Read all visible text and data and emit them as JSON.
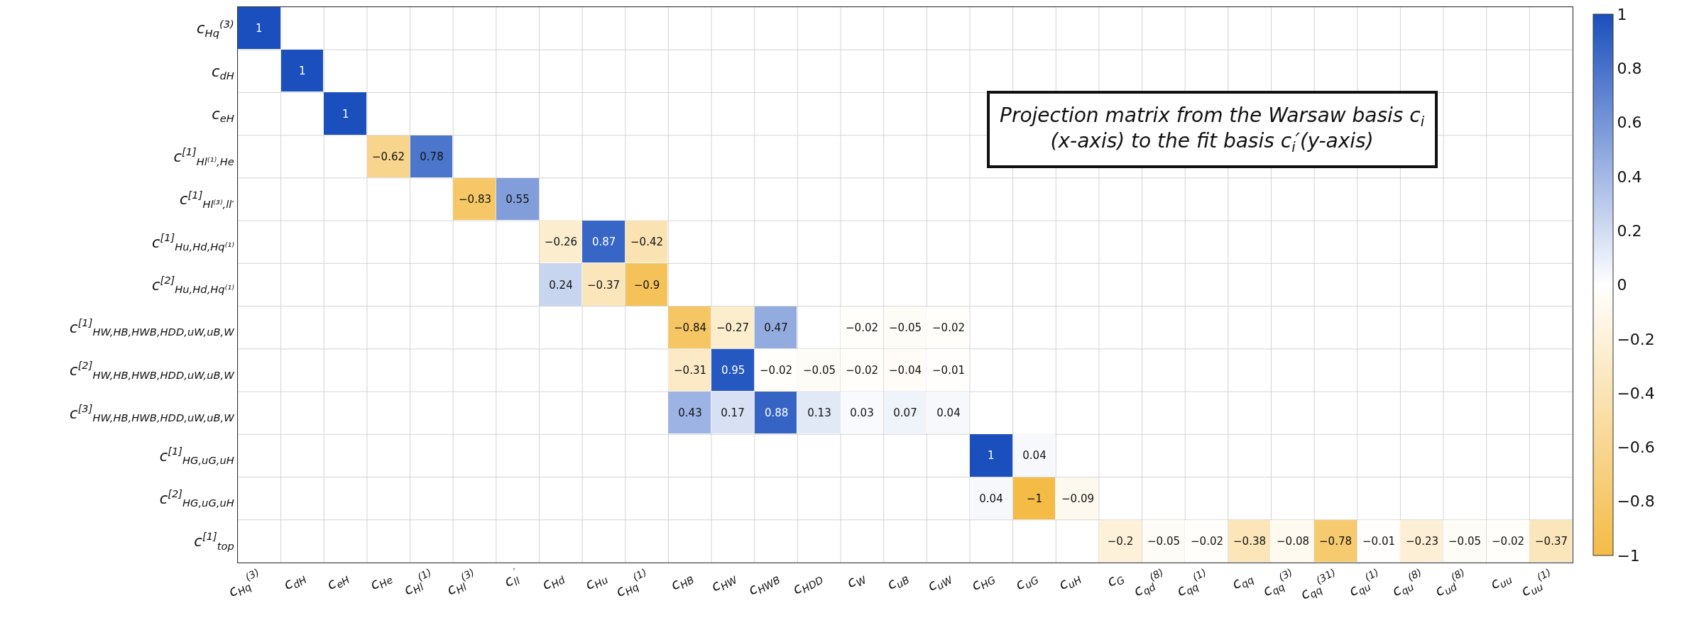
{
  "chart_data": {
    "type": "heatmap",
    "annotations": [
      "Projection matrix from the Warsaw basis c$_{i}$\n(x-axis) to the fit basis c$_{i}$′(y-axis)"
    ],
    "categories": [
      "c$_{Hq}$$^{(3)}$",
      "c$_{dH}$",
      "c$_{eH}$",
      "c$_{He}$",
      "c$_{Hl}$$^{(1)}$",
      "c$_{Hl}$$^{(3)}$",
      "c$_{ll}$$^{′}$",
      "c$_{Hd}$",
      "c$_{Hu}$",
      "c$_{Hq}$$^{(1)}$",
      "c$_{HB}$",
      "c$_{HW}$",
      "c$_{HWB}$",
      "c$_{HDD}$",
      "c$_{W}$",
      "c$_{uB}$",
      "c$_{uW}$",
      "c$_{HG}$",
      "c$_{uG}$",
      "c$_{uH}$",
      "c$_{G}$",
      "c$_{qd}$$^{(8)}$",
      "c$_{qq}$$^{(1)}$",
      "c$_{qq}$",
      "c$_{qq}$$^{(3)}$",
      "c$_{qq}$$^{(31)}$",
      "c$_{qu}$$^{(1)}$",
      "c$_{qu}$$^{(8)}$",
      "c$_{ud}$$^{(8)}$",
      "c$_{uu}$",
      "c$_{uu}$$^{(1)}$"
    ],
    "y_categories": [
      "c$_{Hq}$$^{(3)}$",
      "c$_{dH}$",
      "c$_{eH}$",
      "c$^{[1]}$$_{Hl⁽¹⁾,He}$",
      "c$^{[1]}$$_{Hl⁽³⁾,ll′}$",
      "c$^{[1]}$$_{Hu,Hd,Hq⁽¹⁾}$",
      "c$^{[2]}$$_{Hu,Hd,Hq⁽¹⁾}$",
      "c$^{[1]}$$_{HW,HB,HWB,HDD,uW,uB,W}$",
      "c$^{[2]}$$_{HW,HB,HWB,HDD,uW,uB,W}$",
      "c$^{[3]}$$_{HW,HB,HWB,HDD,uW,uB,W}$",
      "c$^{[1]}$$_{HG,uG,uH}$",
      "c$^{[2]}$$_{HG,uG,uH}$",
      "c$^{[1]}$$_{top}$"
    ],
    "cells": [
      [
        1,
        null,
        null,
        null,
        null,
        null,
        null,
        null,
        null,
        null,
        null,
        null,
        null,
        null,
        null,
        null,
        null,
        null,
        null,
        null,
        null,
        null,
        null,
        null,
        null,
        null,
        null,
        null,
        null,
        null,
        null
      ],
      [
        null,
        1,
        null,
        null,
        null,
        null,
        null,
        null,
        null,
        null,
        null,
        null,
        null,
        null,
        null,
        null,
        null,
        null,
        null,
        null,
        null,
        null,
        null,
        null,
        null,
        null,
        null,
        null,
        null,
        null,
        null
      ],
      [
        null,
        null,
        1,
        null,
        null,
        null,
        null,
        null,
        null,
        null,
        null,
        null,
        null,
        null,
        null,
        null,
        null,
        null,
        null,
        null,
        null,
        null,
        null,
        null,
        null,
        null,
        null,
        null,
        null,
        null,
        null
      ],
      [
        null,
        null,
        null,
        -0.62,
        0.78,
        null,
        null,
        null,
        null,
        null,
        null,
        null,
        null,
        null,
        null,
        null,
        null,
        null,
        null,
        null,
        null,
        null,
        null,
        null,
        null,
        null,
        null,
        null,
        null,
        null,
        null
      ],
      [
        null,
        null,
        null,
        null,
        null,
        -0.83,
        0.55,
        null,
        null,
        null,
        null,
        null,
        null,
        null,
        null,
        null,
        null,
        null,
        null,
        null,
        null,
        null,
        null,
        null,
        null,
        null,
        null,
        null,
        null,
        null,
        null
      ],
      [
        null,
        null,
        null,
        null,
        null,
        null,
        null,
        -0.26,
        0.87,
        -0.42,
        null,
        null,
        null,
        null,
        null,
        null,
        null,
        null,
        null,
        null,
        null,
        null,
        null,
        null,
        null,
        null,
        null,
        null,
        null,
        null,
        null
      ],
      [
        null,
        null,
        null,
        null,
        null,
        null,
        null,
        0.24,
        -0.37,
        -0.9,
        null,
        null,
        null,
        null,
        null,
        null,
        null,
        null,
        null,
        null,
        null,
        null,
        null,
        null,
        null,
        null,
        null,
        null,
        null,
        null,
        null
      ],
      [
        null,
        null,
        null,
        null,
        null,
        null,
        null,
        null,
        null,
        null,
        -0.84,
        -0.27,
        0.47,
        null,
        -0.02,
        -0.05,
        -0.02,
        null,
        null,
        null,
        null,
        null,
        null,
        null,
        null,
        null,
        null,
        null,
        null,
        null,
        null
      ],
      [
        null,
        null,
        null,
        null,
        null,
        null,
        null,
        null,
        null,
        null,
        -0.31,
        0.95,
        -0.02,
        -0.05,
        -0.02,
        -0.04,
        -0.01,
        null,
        null,
        null,
        null,
        null,
        null,
        null,
        null,
        null,
        null,
        null,
        null,
        null,
        null
      ],
      [
        null,
        null,
        null,
        null,
        null,
        null,
        null,
        null,
        null,
        null,
        0.43,
        0.17,
        0.88,
        0.13,
        0.03,
        0.07,
        0.04,
        null,
        null,
        null,
        null,
        null,
        null,
        null,
        null,
        null,
        null,
        null,
        null,
        null,
        null
      ],
      [
        null,
        null,
        null,
        null,
        null,
        null,
        null,
        null,
        null,
        null,
        null,
        null,
        null,
        null,
        null,
        null,
        null,
        1,
        0.04,
        null,
        null,
        null,
        null,
        null,
        null,
        null,
        null,
        null,
        null,
        null,
        null
      ],
      [
        null,
        null,
        null,
        null,
        null,
        null,
        null,
        null,
        null,
        null,
        null,
        null,
        null,
        null,
        null,
        null,
        null,
        0.04,
        -1,
        -0.09,
        null,
        null,
        null,
        null,
        null,
        null,
        null,
        null,
        null,
        null,
        null
      ],
      [
        null,
        null,
        null,
        null,
        null,
        null,
        null,
        null,
        null,
        null,
        null,
        null,
        null,
        null,
        null,
        null,
        null,
        null,
        null,
        null,
        -0.2,
        -0.05,
        -0.02,
        -0.38,
        -0.08,
        -0.78,
        -0.01,
        -0.23,
        -0.05,
        -0.02,
        -0.37
      ]
    ],
    "clim": [
      -1,
      1
    ],
    "cticks": [
      -1,
      -0.8,
      -0.6,
      -0.4,
      -0.2,
      0,
      0.2,
      0.4,
      0.6,
      0.8,
      1
    ],
    "colors": [
      "#f4bb47",
      "#ffffff",
      "#1a4fbd"
    ],
    "data_labels": true,
    "grid": true
  }
}
